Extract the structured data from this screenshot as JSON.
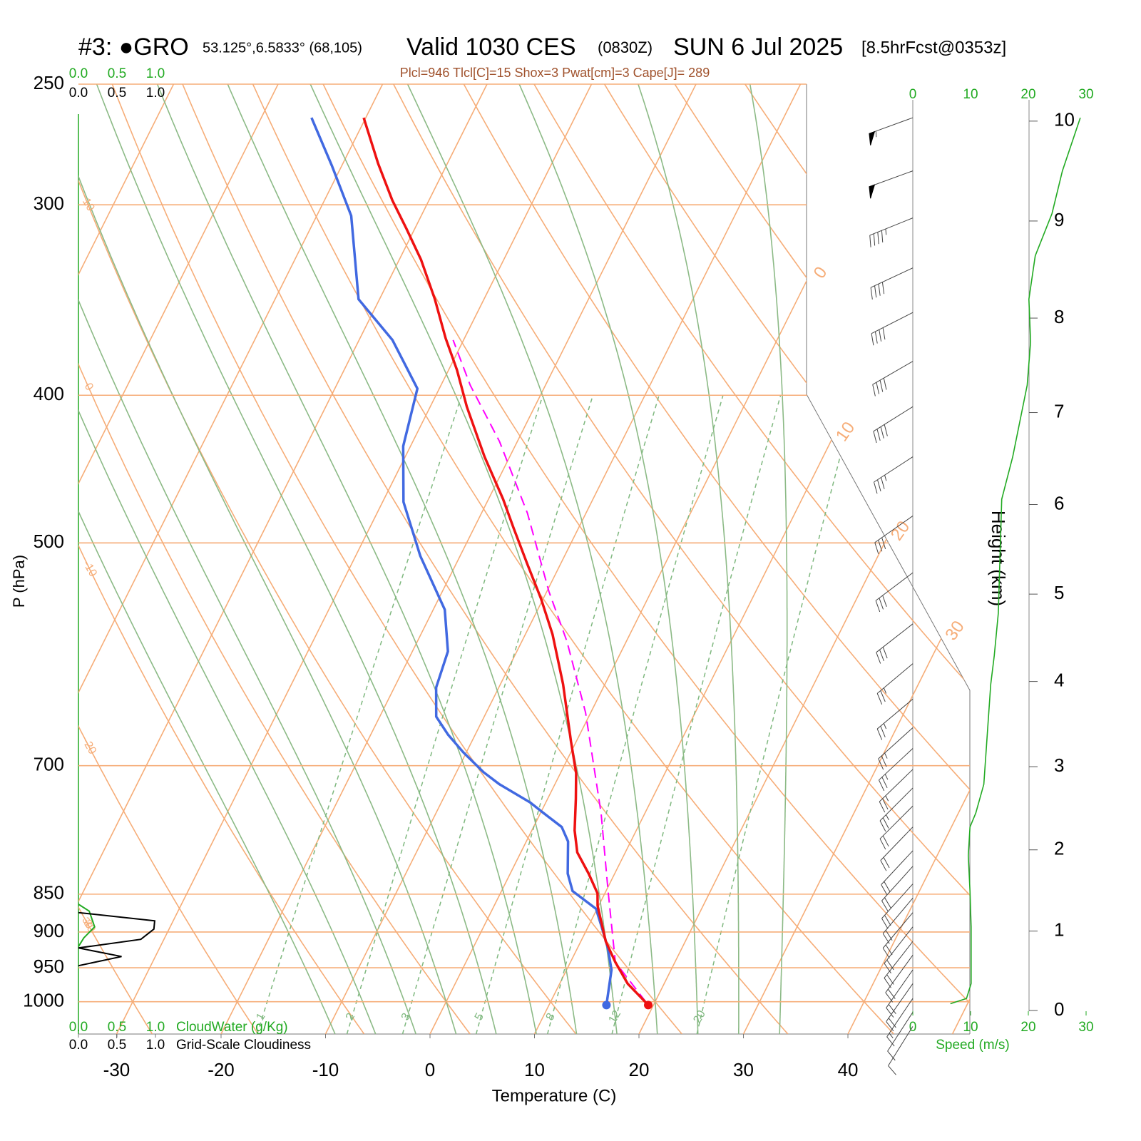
{
  "chart_data": {
    "type": "skewt",
    "title": {
      "station": "#3: ●GRO",
      "coords": "53.125°,6.5833° (68,105)",
      "valid": "Valid 1030 CES",
      "zulu": "(0830Z)",
      "date": "SUN 6 Jul 2025",
      "forecast": "[8.5hrFcst@0353z]"
    },
    "subtitle": "Plcl=946 Tlcl[C]=15 Shox=3 Pwat[cm]=3 Cape[J]= 289",
    "x_label": "Temperature (C)",
    "y_label": "P (hPa)",
    "xlim": [
      -33.65,
      51.67
    ],
    "xticks": [
      -30,
      -20,
      -10,
      0,
      10,
      20,
      30,
      40
    ],
    "ylim": [
      1050,
      250
    ],
    "yticks": [
      250,
      300,
      400,
      500,
      700,
      850,
      900,
      950,
      1000
    ],
    "log_scale": true,
    "temperature": {
      "color": "#ee1111",
      "pressure": [
        1005,
        973,
        942,
        913,
        865,
        849,
        824,
        798,
        772,
        736,
        708,
        675,
        619,
        574,
        544,
        516,
        489,
        468,
        439,
        407,
        385,
        367,
        346,
        326,
        311,
        298,
        282,
        263
      ],
      "values": [
        19.5,
        16.5,
        14.3,
        12.4,
        9.9,
        9.3,
        7.5,
        5.4,
        4.1,
        2.7,
        1.5,
        -0.5,
        -4.0,
        -7.4,
        -10.2,
        -13.2,
        -16.2,
        -18.6,
        -22.4,
        -26.5,
        -29.2,
        -31.8,
        -34.7,
        -37.9,
        -40.8,
        -43.5,
        -46.6,
        -50.2
      ]
    },
    "dewpoint": {
      "color": "#4169e1",
      "pressure": [
        1005,
        953,
        922,
        893,
        869,
        846,
        824,
        785,
        768,
        752,
        740,
        720,
        707,
        686,
        668,
        650,
        622,
        589,
        553,
        510,
        470,
        432,
        396,
        368,
        346,
        305,
        283,
        263
      ],
      "values": [
        15.5,
        14.3,
        12.9,
        11.3,
        9.9,
        6.8,
        5.5,
        4.0,
        2.7,
        0.3,
        -1.5,
        -5.3,
        -7.4,
        -10.3,
        -12.6,
        -14.6,
        -16.0,
        -16.6,
        -18.9,
        -23.8,
        -28.0,
        -30.7,
        -32.1,
        -36.8,
        -42.0,
        -46.7,
        -50.9,
        -55.2
      ]
    },
    "parcel": {
      "color": "#ff00ff",
      "pressure": [
        1000,
        942,
        846,
        752,
        646,
        580,
        538,
        478,
        429,
        394,
        368
      ],
      "values": [
        19.1,
        14.3,
        10.2,
        5.8,
        -0.5,
        -5.7,
        -9.8,
        -15.6,
        -21.7,
        -27.2,
        -31.0
      ]
    },
    "isotherms": {
      "color": "#f6ad78",
      "values": [
        -80,
        -70,
        -60,
        -50,
        -40,
        -30,
        -20,
        -10,
        0,
        10,
        20,
        30,
        40,
        50
      ],
      "labels": [
        0,
        10,
        20,
        30
      ]
    },
    "dry_adiabats": {
      "color": "#f6ad78",
      "values": [
        -40,
        -30,
        -20,
        -10,
        0,
        10,
        20,
        30,
        40,
        50,
        60,
        70,
        80,
        90,
        100,
        110,
        120
      ],
      "labels": [
        10,
        0,
        -10,
        -20,
        -30
      ]
    },
    "moist_adiabats": {
      "color": "#8cba86",
      "values": [
        -12,
        -8,
        -4,
        0,
        4,
        8,
        12,
        16,
        20,
        24,
        28,
        32
      ]
    },
    "mixing_ratios": {
      "color": "#7fb87f",
      "values": [
        1,
        2,
        3,
        5,
        8,
        12,
        20
      ]
    },
    "height_label": "Height (km)",
    "height_ticks": [
      0,
      1,
      2,
      3,
      4,
      5,
      6,
      7,
      8,
      9,
      10
    ],
    "speed": {
      "color": "#22aa22",
      "label": "Speed (m/s)",
      "lim": [
        0,
        30
      ],
      "ticks": [
        0,
        10,
        20,
        30
      ],
      "pressure": [
        1003,
        995,
        973,
        893,
        846,
        802,
        768,
        752,
        720,
        667,
        619,
        593,
        556,
        468,
        439,
        394,
        369,
        346,
        324,
        304,
        285,
        263
      ],
      "values": [
        6.5,
        9.3,
        10.1,
        10.1,
        9.9,
        9.6,
        9.9,
        10.9,
        12.3,
        12.9,
        13.5,
        14.1,
        14.8,
        15.4,
        17.3,
        19.8,
        20.4,
        20.1,
        21.2,
        24.1,
        25.9,
        29.0
      ]
    },
    "barbs": {
      "color": "#444444",
      "pressure": [
        263,
        285,
        306,
        330,
        353,
        380,
        407,
        439,
        480,
        523,
        565,
        600,
        633,
        661,
        682,
        704,
        724,
        744,
        768,
        796,
        815,
        837,
        855,
        874,
        893,
        913,
        932,
        953,
        973,
        995,
        1016,
        1038
      ],
      "direction": [
        250,
        250,
        248,
        245,
        243,
        240,
        238,
        237,
        235,
        233,
        232,
        230,
        230,
        228,
        227,
        226,
        225,
        225,
        224,
        223,
        222,
        222,
        220,
        220,
        218,
        218,
        216,
        215,
        215,
        214,
        213,
        212
      ],
      "speed": [
        56,
        50,
        46,
        42,
        39,
        38,
        39,
        34,
        30,
        29,
        29,
        27,
        26,
        25,
        25,
        24,
        24,
        22,
        19,
        19,
        19,
        19,
        19,
        19,
        19,
        20,
        20,
        20,
        19,
        17,
        12,
        8
      ]
    },
    "cloud": {
      "lim": [
        0,
        1
      ],
      "ticks": [
        {
          "value": 0,
          "label": "0.0"
        },
        {
          "value": 0.5,
          "label": "0.5"
        },
        {
          "value": 1,
          "label": "1.0"
        }
      ],
      "cloudwater": {
        "label": "CloudWater (g/Kg)",
        "color": "#22aa22",
        "pressure": [
          863,
          872,
          893,
          908,
          920
        ],
        "values": [
          0,
          0.14,
          0.21,
          0.07,
          0
        ]
      },
      "cloudiness": {
        "label": "Grid-Scale Cloudiness",
        "color": "#000000",
        "pressure": [
          874,
          885,
          896,
          910,
          922,
          934,
          947
        ],
        "values": [
          0,
          0.99,
          0.98,
          0.81,
          0,
          0.56,
          0
        ]
      },
      "annotation": "30"
    }
  }
}
